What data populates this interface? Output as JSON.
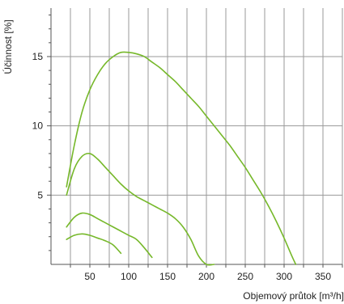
{
  "chart_data": {
    "type": "line",
    "xlabel": "Objemový průtok [m³/h]",
    "ylabel": "Účinnost [%]",
    "xlim": [
      0,
      375
    ],
    "ylim": [
      0,
      18.5
    ],
    "x_ticks": [
      50,
      100,
      150,
      200,
      250,
      300,
      350
    ],
    "y_ticks": [
      5,
      10,
      15
    ],
    "grid": true,
    "line_color": "#76b82a",
    "series": [
      {
        "x": [
          20,
          30,
          40,
          50,
          60,
          70,
          80,
          90,
          100,
          110,
          120,
          130,
          140,
          150,
          160,
          170,
          180,
          190,
          200,
          210,
          220,
          230,
          240,
          250,
          260,
          270,
          280,
          290,
          300,
          310,
          315
        ],
        "y": [
          5.6,
          8.6,
          11.0,
          12.6,
          13.7,
          14.5,
          15.0,
          15.3,
          15.3,
          15.2,
          15.0,
          14.6,
          14.2,
          13.7,
          13.2,
          12.6,
          12.0,
          11.4,
          10.7,
          10.0,
          9.3,
          8.6,
          7.8,
          7.0,
          6.1,
          5.2,
          4.2,
          3.1,
          1.9,
          0.6,
          0.0
        ]
      },
      {
        "x": [
          20,
          30,
          40,
          50,
          60,
          70,
          80,
          90,
          100,
          110,
          120,
          130,
          140,
          150,
          160,
          170,
          180,
          190,
          200,
          210
        ],
        "y": [
          5.0,
          6.9,
          7.8,
          8.0,
          7.6,
          7.0,
          6.4,
          5.8,
          5.3,
          4.9,
          4.6,
          4.3,
          4.0,
          3.7,
          3.3,
          2.7,
          1.8,
          0.6,
          0.0,
          0.0
        ]
      },
      {
        "x": [
          20,
          30,
          40,
          50,
          60,
          70,
          80,
          90,
          100,
          110,
          120,
          130
        ],
        "y": [
          2.7,
          3.4,
          3.7,
          3.6,
          3.3,
          3.0,
          2.7,
          2.4,
          2.1,
          1.8,
          1.2,
          0.5
        ]
      },
      {
        "x": [
          20,
          30,
          40,
          50,
          60,
          70,
          80,
          90
        ],
        "y": [
          1.8,
          2.1,
          2.2,
          2.1,
          1.9,
          1.7,
          1.4,
          0.8
        ]
      }
    ]
  }
}
